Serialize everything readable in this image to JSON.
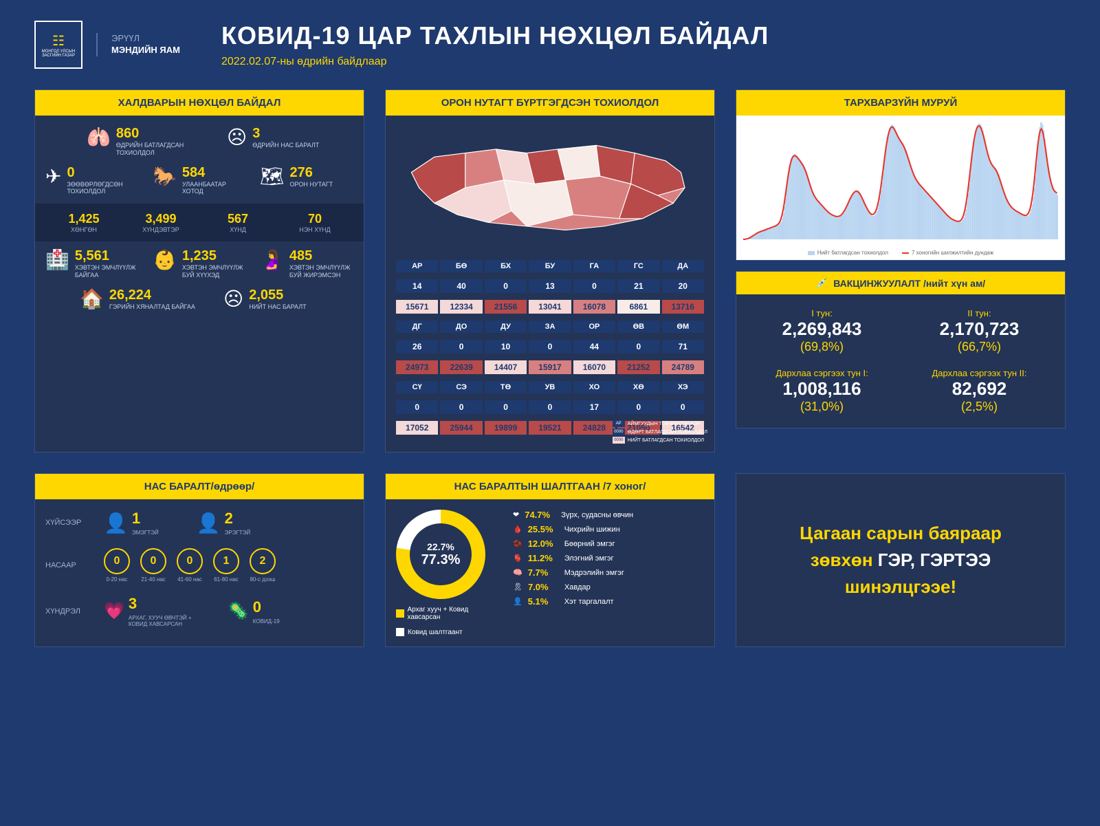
{
  "colors": {
    "bg": "#1e3a6e",
    "panel": "#243456",
    "accent": "#ffd700",
    "white": "#ffffff",
    "map_dark": "#b84a4a",
    "map_med": "#d88080",
    "map_light": "#f5d8d8",
    "map_pale": "#f8ece8"
  },
  "header": {
    "ministry_line1": "ЭРҮҮЛ",
    "ministry_line2": "МЭНДИЙН ЯАМ",
    "title": "КОВИД-19 ЦАР ТАХЛЫН НӨХЦӨЛ БАЙДАЛ",
    "date": "2022.02.07-ны өдрийн байдлаар"
  },
  "infection": {
    "title": "ХАЛДВАРЫН НӨХЦӨЛ БАЙДАЛ",
    "confirmed": {
      "val": "860",
      "lbl": "ӨДРИЙН БАТЛАГДСАН ТОХИОЛДОЛ"
    },
    "deaths_today": {
      "val": "3",
      "lbl": "ӨДРИЙН НАС БАРАЛТ"
    },
    "imported": {
      "val": "0",
      "lbl": "ЗӨӨВӨРЛӨГДСӨН ТОХИОЛДОЛ"
    },
    "ub": {
      "val": "584",
      "lbl": "УЛААНБААТАР ХОТОД"
    },
    "rural": {
      "val": "276",
      "lbl": "ОРОН НУТАГТ"
    },
    "severity": [
      {
        "val": "1,425",
        "lbl": "ХӨНГӨН"
      },
      {
        "val": "3,499",
        "lbl": "ХҮНДЭВТЭР"
      },
      {
        "val": "567",
        "lbl": "ХҮНД"
      },
      {
        "val": "70",
        "lbl": "НЭН ХҮНД"
      }
    ],
    "hospitalized": {
      "val": "5,561",
      "lbl": "ХЭВТЭН ЭМЧЛҮҮЛЖ БАЙГАА"
    },
    "children": {
      "val": "1,235",
      "lbl": "ХЭВТЭН ЭМЧЛҮҮЛЖ БУЙ ХҮҮХЭД"
    },
    "pregnant": {
      "val": "485",
      "lbl": "ХЭВТЭН ЭМЧЛҮҮЛЖ БУЙ ЖИРЭМСЭН"
    },
    "home": {
      "val": "26,224",
      "lbl": "ГЭРИЙН ХЯНАЛТАД БАЙГАА"
    },
    "total_deaths": {
      "val": "2,055",
      "lbl": "НИЙТ НАС БАРАЛТ"
    }
  },
  "provinces": {
    "title": "ОРОН НУТАГТ БҮРТГЭГДСЭН ТОХИОЛДОЛ",
    "legend": {
      "code": "АР",
      "code_lbl": "АЙМГУУДЫН ТОВЧИЛСОН НЭР",
      "daily": "0000",
      "daily_lbl": "ӨДӨРТ БАТЛАГДСАН ТОХИОЛДОЛ",
      "total": "0000",
      "total_lbl": "НИЙТ БАТЛАГДСАН ТОХИОЛДОЛ"
    },
    "rows": [
      [
        {
          "code": "АР",
          "daily": "14",
          "total": "15671",
          "c": "#f5d8d8"
        },
        {
          "code": "БӨ",
          "daily": "40",
          "total": "12334",
          "c": "#f5d8d8"
        },
        {
          "code": "БХ",
          "daily": "0",
          "total": "21556",
          "c": "#b84a4a"
        },
        {
          "code": "БУ",
          "daily": "13",
          "total": "13041",
          "c": "#f5d8d8"
        },
        {
          "code": "ГА",
          "daily": "0",
          "total": "16078",
          "c": "#d88080"
        },
        {
          "code": "ГС",
          "daily": "21",
          "total": "6861",
          "c": "#f8ece8"
        },
        {
          "code": "ДА",
          "daily": "20",
          "total": "13716",
          "c": "#b84a4a"
        }
      ],
      [
        {
          "code": "ДГ",
          "daily": "26",
          "total": "24973",
          "c": "#b84a4a"
        },
        {
          "code": "ДО",
          "daily": "0",
          "total": "22639",
          "c": "#b84a4a"
        },
        {
          "code": "ДУ",
          "daily": "10",
          "total": "14407",
          "c": "#f5d8d8"
        },
        {
          "code": "ЗА",
          "daily": "0",
          "total": "15917",
          "c": "#d88080"
        },
        {
          "code": "ОР",
          "daily": "44",
          "total": "16070",
          "c": "#f5d8d8"
        },
        {
          "code": "ӨВ",
          "daily": "0",
          "total": "21252",
          "c": "#b84a4a"
        },
        {
          "code": "ӨМ",
          "daily": "71",
          "total": "24789",
          "c": "#d88080"
        }
      ],
      [
        {
          "code": "СҮ",
          "daily": "0",
          "total": "17052",
          "c": "#f5d8d8"
        },
        {
          "code": "СЭ",
          "daily": "0",
          "total": "25944",
          "c": "#b84a4a"
        },
        {
          "code": "ТӨ",
          "daily": "0",
          "total": "19899",
          "c": "#b84a4a"
        },
        {
          "code": "УВ",
          "daily": "0",
          "total": "19521",
          "c": "#b84a4a"
        },
        {
          "code": "ХО",
          "daily": "17",
          "total": "24828",
          "c": "#b84a4a"
        },
        {
          "code": "ХӨ",
          "daily": "0",
          "total": "21050",
          "c": "#b84a4a"
        },
        {
          "code": "ХЭ",
          "daily": "0",
          "total": "16542",
          "c": "#f5d8d8"
        }
      ]
    ]
  },
  "epicurve": {
    "title": "ТАРХВАРЗҮЙН МУРУЙ",
    "legend1": "Нийт батлагдсан тохиолдол",
    "legend2": "7 хоногийн шилжилтийн дундаж",
    "bar_color": "#b8d4f0",
    "line_color": "#e8332a",
    "days": 300,
    "values": [
      0,
      0,
      0,
      0,
      0,
      1,
      1,
      2,
      2,
      3,
      3,
      4,
      5,
      5,
      6,
      6,
      7,
      7,
      7,
      7,
      8,
      8,
      8,
      9,
      9,
      10,
      10,
      10,
      10,
      11,
      11,
      12,
      12,
      12,
      13,
      14,
      15,
      18,
      22,
      28,
      35,
      43,
      50,
      58,
      63,
      68,
      70,
      72,
      73,
      73,
      72,
      71,
      70,
      68,
      67,
      66,
      65,
      64,
      62,
      60,
      58,
      55,
      52,
      48,
      45,
      42,
      40,
      38,
      36,
      35,
      34,
      33,
      32,
      31,
      30,
      29,
      28,
      27,
      26,
      25,
      24,
      23,
      22,
      22,
      21,
      21,
      20,
      20,
      20,
      19,
      19,
      19,
      20,
      20,
      21,
      22,
      23,
      25,
      27,
      29,
      31,
      33,
      35,
      37,
      39,
      40,
      41,
      42,
      42,
      42,
      41,
      40,
      38,
      36,
      34,
      32,
      30,
      28,
      26,
      24,
      23,
      22,
      21,
      20,
      20,
      21,
      22,
      24,
      27,
      31,
      36,
      42,
      49,
      57,
      65,
      73,
      80,
      86,
      91,
      95,
      97,
      98,
      98,
      97,
      95,
      93,
      90,
      88,
      86,
      85,
      84,
      83,
      82,
      80,
      78,
      76,
      73,
      70,
      67,
      64,
      61,
      58,
      56,
      54,
      52,
      50,
      49,
      48,
      47,
      46,
      45,
      44,
      43,
      42,
      41,
      40,
      39,
      38,
      37,
      36,
      35,
      34,
      33,
      32,
      31,
      30,
      29,
      28,
      27,
      26,
      25,
      24,
      23,
      22,
      21,
      20,
      19,
      18,
      18,
      17,
      17,
      16,
      16,
      16,
      15,
      15,
      15,
      15,
      16,
      17,
      19,
      22,
      26,
      32,
      39,
      47,
      56,
      65,
      74,
      82,
      88,
      93,
      96,
      98,
      99,
      99,
      98,
      96,
      93,
      89,
      85,
      80,
      76,
      72,
      69,
      66,
      64,
      63,
      62,
      62,
      61,
      60,
      58,
      56,
      53,
      50,
      47,
      44,
      41,
      38,
      36,
      34,
      32,
      30,
      29,
      28,
      27,
      26,
      25,
      25,
      24,
      24,
      23,
      23,
      22,
      22,
      21,
      21,
      20,
      20,
      20,
      20,
      21,
      23,
      26,
      30,
      36,
      44,
      54,
      65,
      77,
      88,
      96,
      100,
      100,
      98,
      93,
      86,
      78,
      70,
      63,
      57,
      52,
      48,
      45,
      43,
      41,
      40,
      39,
      38
    ]
  },
  "vaccination": {
    "title": "ВАКЦИНЖУУЛАЛТ /нийт хүн ам/",
    "dose1": {
      "label": "I тун:",
      "num": "2,269,843",
      "pct": "(69,8%)"
    },
    "dose2": {
      "label": "II тун:",
      "num": "2,170,723",
      "pct": "(66,7%)"
    },
    "booster1": {
      "label": "Дархлаа сэргээх тун I:",
      "num": "1,008,116",
      "pct": "(31,0%)"
    },
    "booster2": {
      "label": "Дархлаа сэргээх тун II:",
      "num": "82,692",
      "pct": "(2,5%)"
    }
  },
  "deaths_daily": {
    "title": "НАС БАРАЛТ/өдрөөр/",
    "gender_label": "ХҮЙСЭЭР",
    "female": {
      "val": "1",
      "lbl": "ЭМЭГТЭЙ"
    },
    "male": {
      "val": "2",
      "lbl": "ЭРЭГТЭЙ"
    },
    "age_label": "НАСААР",
    "ages": [
      {
        "val": "0",
        "lbl": "0-20 нас"
      },
      {
        "val": "0",
        "lbl": "21-40 нас"
      },
      {
        "val": "0",
        "lbl": "41-60 нас"
      },
      {
        "val": "1",
        "lbl": "61-80 нас"
      },
      {
        "val": "2",
        "lbl": "80-с дээш"
      }
    ],
    "comp_label": "ХҮНДРЭЛ",
    "chronic": {
      "val": "3",
      "lbl": "АРХАГ, ХУУЧ ӨВЧТЭЙ + КОВИД ХАВСАРСАН"
    },
    "covid_only": {
      "val": "0",
      "lbl": "КОВИД-19"
    }
  },
  "death_causes": {
    "title": "НАС БАРАЛТЫН ШАЛТГААН /7 хоног/",
    "donut_inner": "22.7%",
    "donut_outer": "77.3%",
    "legend_yellow": "Архаг хууч + Ковид хавсарсан",
    "legend_white": "Ковид шалтгаант",
    "causes": [
      {
        "pct": "74.7%",
        "lbl": "Зүрх, судасны өвчин"
      },
      {
        "pct": "25.5%",
        "lbl": "Чихрийн шижин"
      },
      {
        "pct": "12.0%",
        "lbl": "Бөөрний эмгэг"
      },
      {
        "pct": "11.2%",
        "lbl": "Элэгний эмгэг"
      },
      {
        "pct": "7.7%",
        "lbl": "Мэдрэлийн эмгэг"
      },
      {
        "pct": "7.0%",
        "lbl": "Хавдар"
      },
      {
        "pct": "5.1%",
        "lbl": "Хэт таргалалт"
      }
    ]
  },
  "message": {
    "line1": "Цагаан сарын баяраар",
    "line2a": "зөвхөн ",
    "line2b": "ГЭР, ГЭРТЭЭ",
    "line3": "шинэлцгээе!"
  }
}
